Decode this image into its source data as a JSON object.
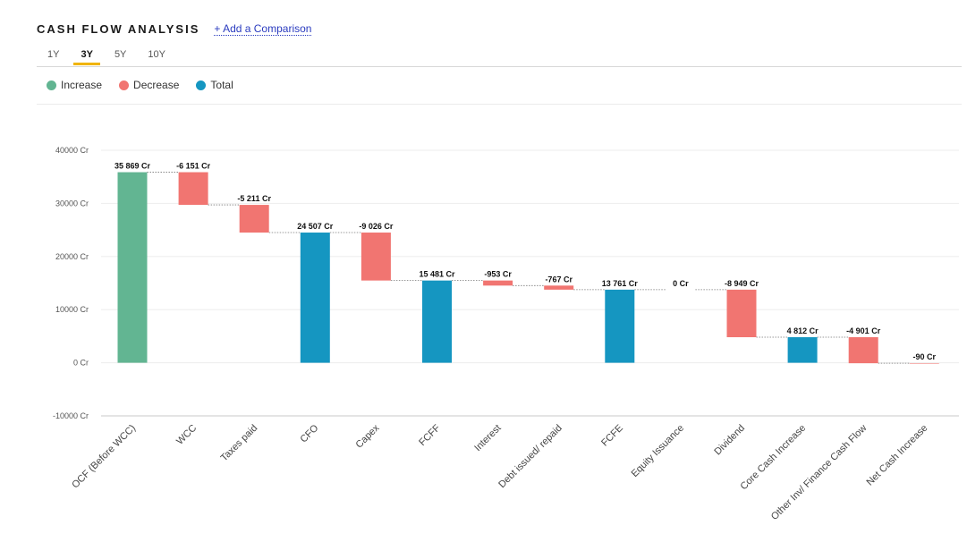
{
  "header": {
    "title": "CASH FLOW ANALYSIS",
    "compare_label": "+ Add a Comparison"
  },
  "periods": {
    "tabs": [
      "1Y",
      "3Y",
      "5Y",
      "10Y"
    ],
    "selected": "3Y"
  },
  "legend": {
    "items": [
      {
        "label": "Increase",
        "color": "#62b592"
      },
      {
        "label": "Decrease",
        "color": "#f17571"
      },
      {
        "label": "Total",
        "color": "#1596c1"
      }
    ]
  },
  "chart_data": {
    "type": "bar",
    "subtype": "waterfall",
    "unit_suffix": " Cr",
    "ylim": [
      -10000,
      40000
    ],
    "yticks": [
      {
        "value": 40000,
        "label": "40000 Cr"
      },
      {
        "value": 30000,
        "label": "30000 Cr"
      },
      {
        "value": 20000,
        "label": "20000 Cr"
      },
      {
        "value": 10000,
        "label": "10000 Cr"
      },
      {
        "value": 0,
        "label": "0 Cr"
      },
      {
        "value": -10000,
        "label": "-10000 Cr"
      }
    ],
    "grid": true,
    "legend_position": "top-left",
    "colors": {
      "increase": "#62b592",
      "decrease": "#f17571",
      "total": "#1596c1"
    },
    "categories": [
      "OCF (Before WCC)",
      "WCC",
      "Taxes paid",
      "CFO",
      "Capex",
      "FCFF",
      "Interest",
      "Debt issued/ repaid",
      "FCFE",
      "Equity Issuance",
      "Dividend",
      "Core Cash Increase",
      "Other Inv/ Finance Cash Flow",
      "Net Cash Increase"
    ],
    "values": [
      35869,
      -6151,
      -5211,
      24507,
      -9026,
      15481,
      -953,
      -767,
      13761,
      0,
      -8949,
      4812,
      -4901,
      -90
    ],
    "kinds": [
      "increase",
      "decrease",
      "decrease",
      "total",
      "decrease",
      "total",
      "decrease",
      "decrease",
      "total",
      "increase",
      "decrease",
      "total",
      "decrease",
      "decrease"
    ],
    "value_labels": [
      "35 869 Cr",
      "-6 151 Cr",
      "-5 211 Cr",
      "24 507 Cr",
      "-9 026 Cr",
      "15 481 Cr",
      "-953 Cr",
      "-767 Cr",
      "13 761 Cr",
      "0 Cr",
      "-8 949 Cr",
      "4 812 Cr",
      "-4 901 Cr",
      "-90 Cr"
    ]
  }
}
